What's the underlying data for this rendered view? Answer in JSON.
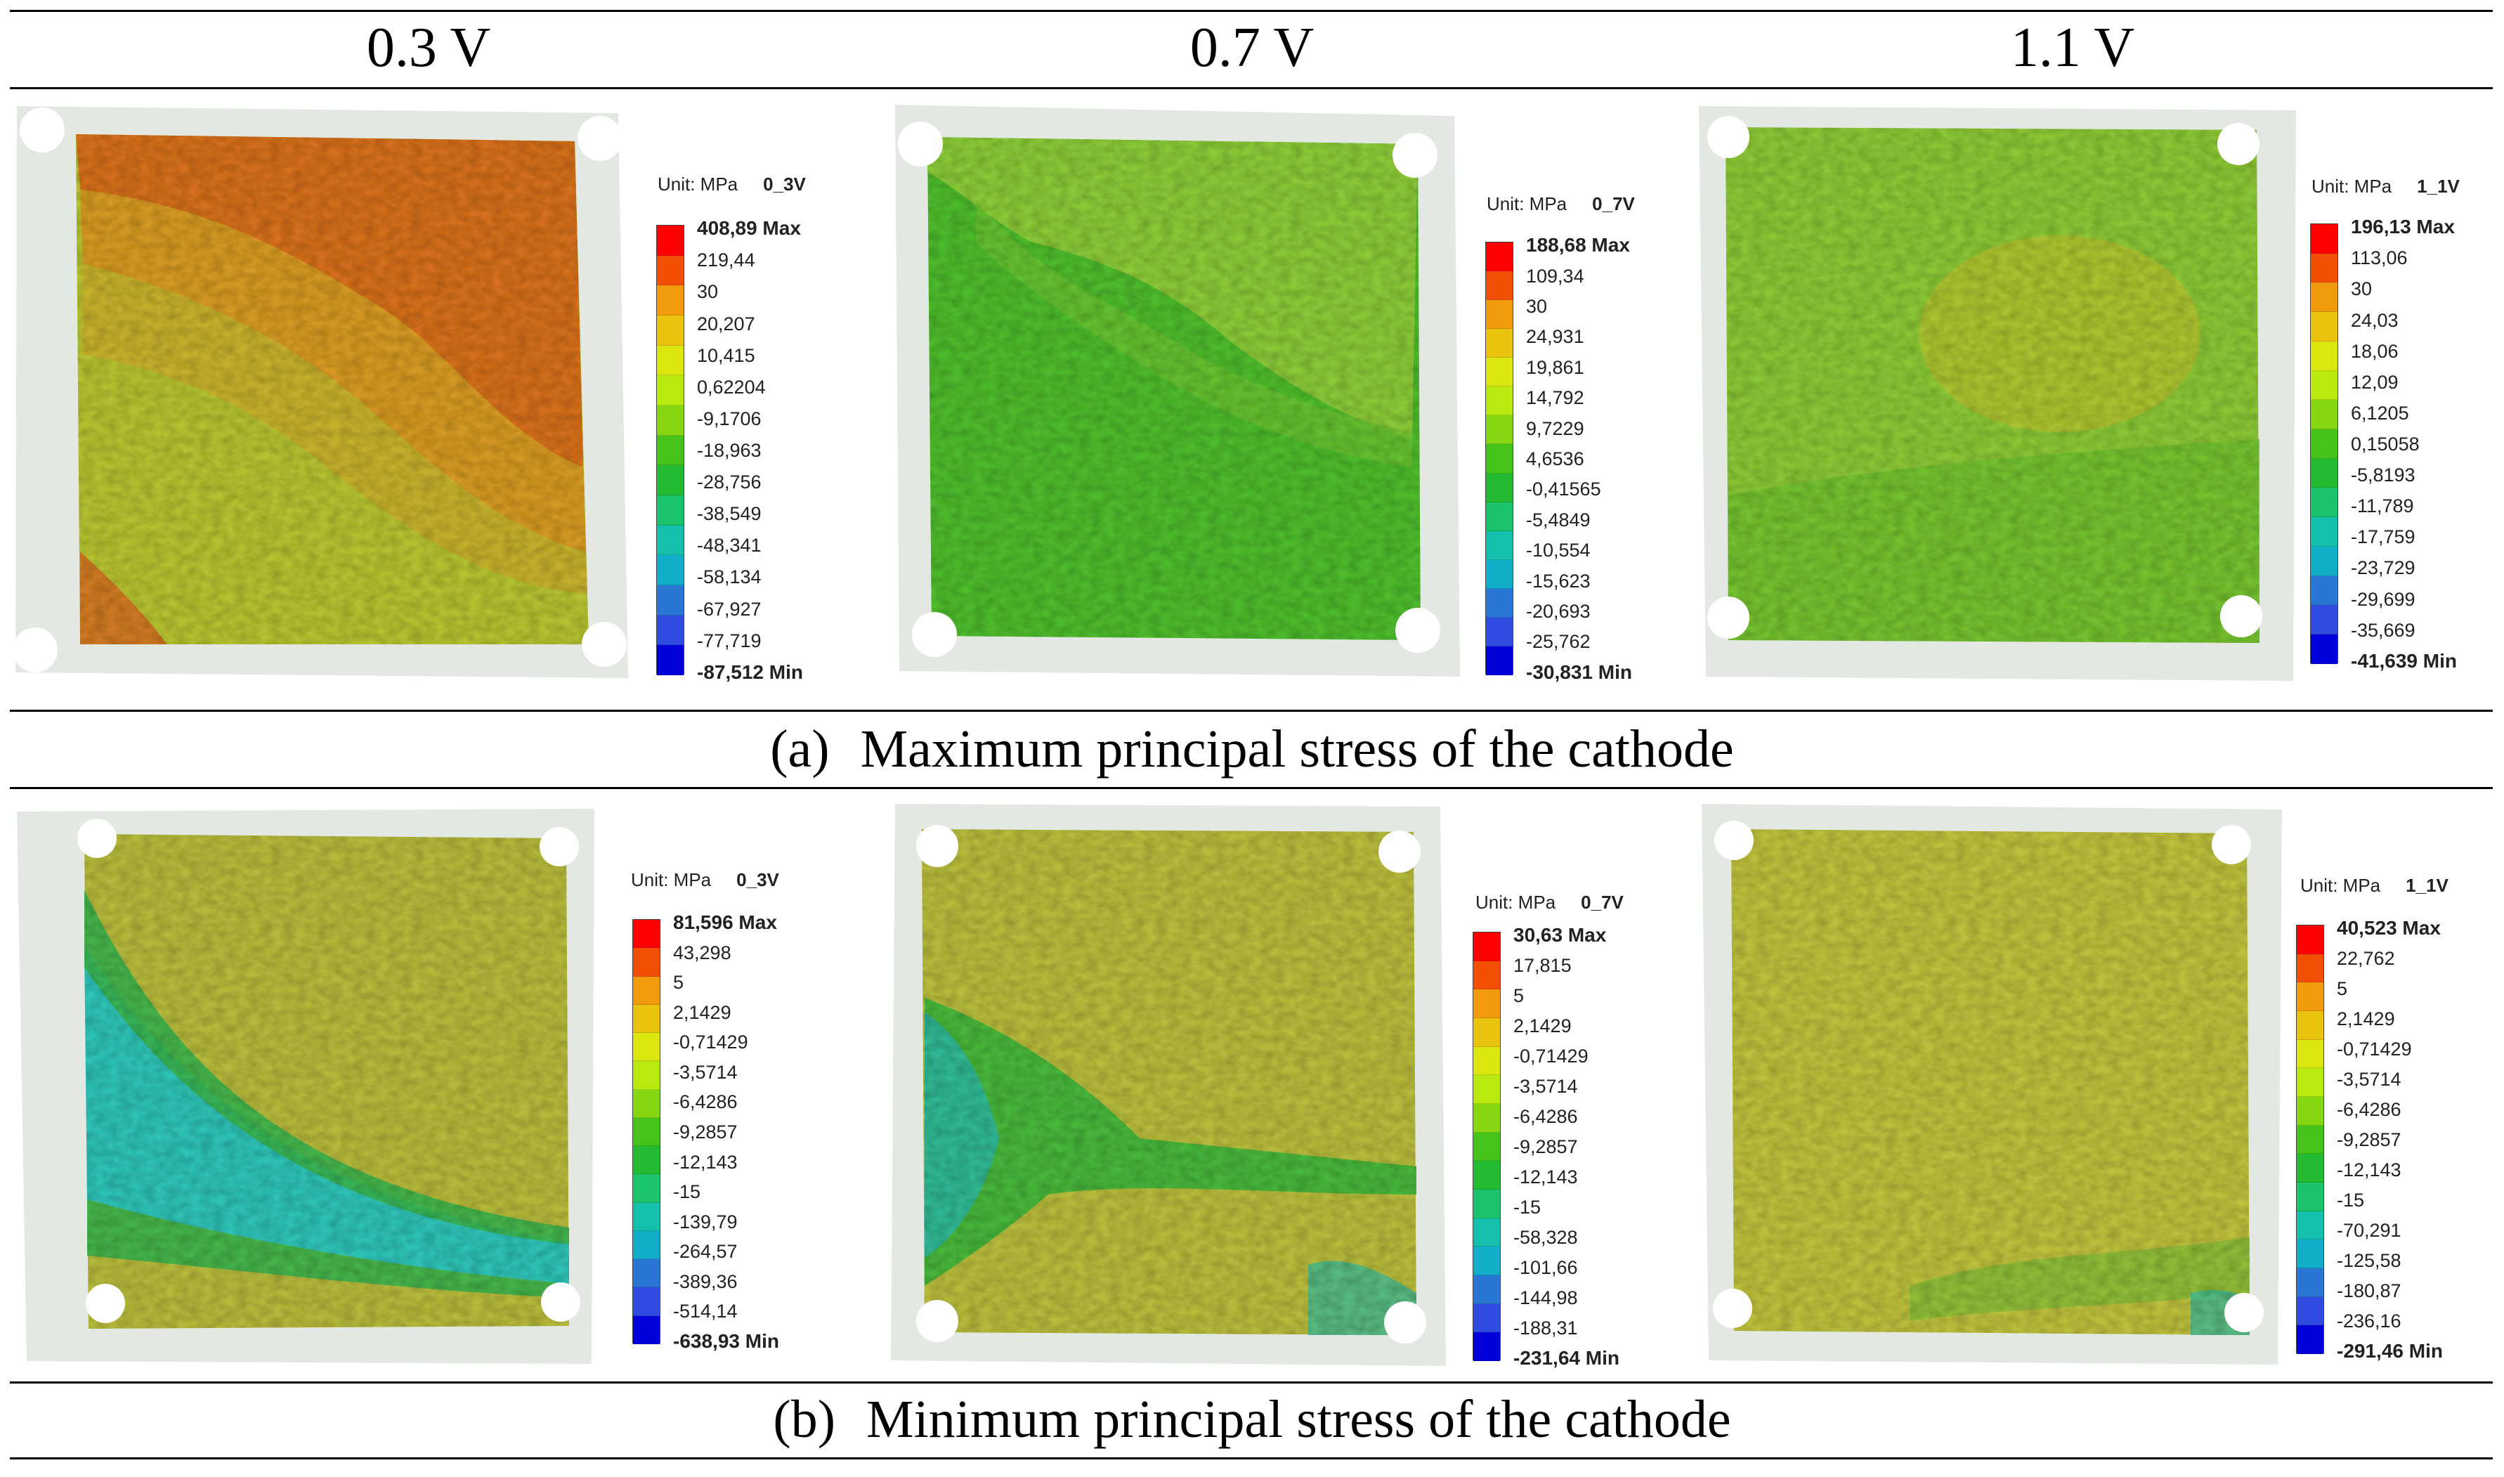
{
  "columns": [
    "0.3 V",
    "0.7 V",
    "1.1 V"
  ],
  "caption_a": {
    "label": "(a)",
    "text": "Maximum principal stress of the cathode"
  },
  "caption_b": {
    "label": "(b)",
    "text": "Minimum principal stress of the cathode"
  },
  "unit_label": "Unit: MPa",
  "legend_colors": [
    "#ff0000",
    "#f24f05",
    "#f19a0b",
    "#eac30e",
    "#dce60f",
    "#b9ea10",
    "#87d612",
    "#46c31a",
    "#24bb32",
    "#1bc36c",
    "#14c0ac",
    "#11adc9",
    "#2a76d4",
    "#2f4be0",
    "#0000d8"
  ],
  "panels": [
    {
      "id": "a1",
      "row": "a",
      "case": "0_3V",
      "ticks": [
        "408,89 Max",
        "219,44",
        "30",
        "20,207",
        "10,415",
        "0,62204",
        "-9,1706",
        "-18,963",
        "-28,756",
        "-38,549",
        "-48,341",
        "-58,134",
        "-67,927",
        "-77,719",
        "-87,512 Min"
      ]
    },
    {
      "id": "a2",
      "row": "a",
      "case": "0_7V",
      "ticks": [
        "188,68 Max",
        "109,34",
        "30",
        "24,931",
        "19,861",
        "14,792",
        "9,7229",
        "4,6536",
        "-0,41565",
        "-5,4849",
        "-10,554",
        "-15,623",
        "-20,693",
        "-25,762",
        "-30,831 Min"
      ]
    },
    {
      "id": "a3",
      "row": "a",
      "case": "1_1V",
      "ticks": [
        "196,13 Max",
        "113,06",
        "30",
        "24,03",
        "18,06",
        "12,09",
        "6,1205",
        "0,15058",
        "-5,8193",
        "-11,789",
        "-17,759",
        "-23,729",
        "-29,699",
        "-35,669",
        "-41,639 Min"
      ]
    },
    {
      "id": "b1",
      "row": "b",
      "case": "0_3V",
      "ticks": [
        "81,596 Max",
        "43,298",
        "5",
        "2,1429",
        "-0,71429",
        "-3,5714",
        "-6,4286",
        "-9,2857",
        "-12,143",
        "-15",
        "-139,79",
        "-264,57",
        "-389,36",
        "-514,14",
        "-638,93 Min"
      ]
    },
    {
      "id": "b2",
      "row": "b",
      "case": "0_7V",
      "ticks": [
        "30,63 Max",
        "17,815",
        "5",
        "2,1429",
        "-0,71429",
        "-3,5714",
        "-6,4286",
        "-9,2857",
        "-12,143",
        "-15",
        "-58,328",
        "-101,66",
        "-144,98",
        "-188,31",
        "-231,64 Min"
      ]
    },
    {
      "id": "b3",
      "row": "b",
      "case": "1_1V",
      "ticks": [
        "40,523 Max",
        "22,762",
        "5",
        "2,1429",
        "-0,71429",
        "-3,5714",
        "-6,4286",
        "-9,2857",
        "-12,143",
        "-15",
        "-70,291",
        "-125,58",
        "-180,87",
        "-236,16",
        "-291,46 Min"
      ]
    }
  ]
}
